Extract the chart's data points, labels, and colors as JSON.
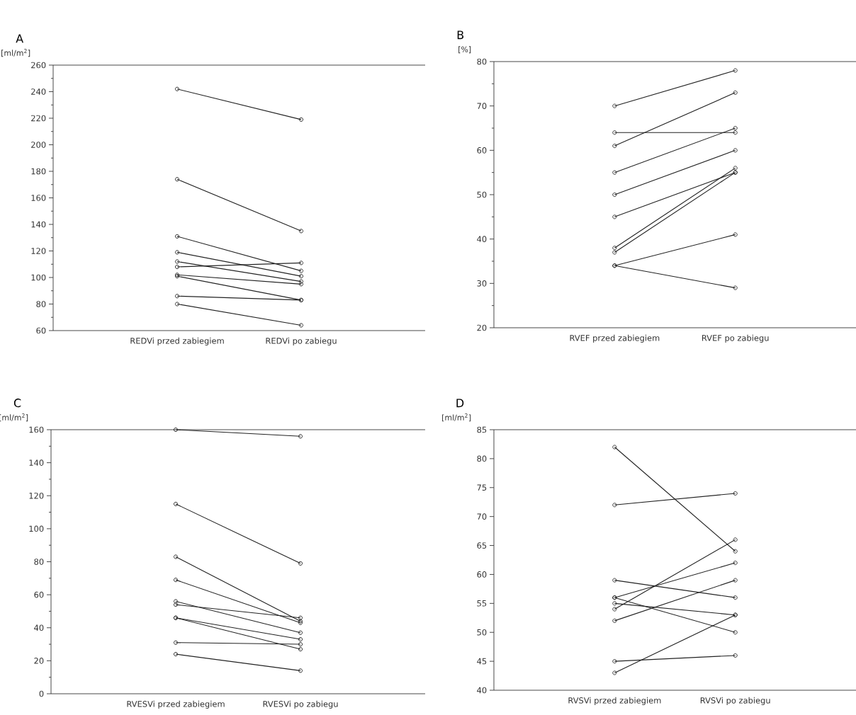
{
  "chart_data": [
    {
      "type": "line",
      "title": "A",
      "ylabel": "[ml/m$^{2}$]",
      "categories": [
        "REDVi przed zabiegiem",
        "REDVi po zabiegu"
      ],
      "marker": "circle",
      "line_style": "solid",
      "ylim": [
        60,
        260
      ],
      "yticks": [
        60,
        {
          "value": 70,
          "label": null
        },
        80,
        {
          "value": 90,
          "label": null
        },
        100,
        {
          "value": 110,
          "label": null
        },
        120,
        {
          "value": 130,
          "label": null
        },
        140,
        {
          "value": 150,
          "label": null
        },
        160,
        {
          "value": 170,
          "label": null
        },
        180,
        {
          "value": 190,
          "label": null
        },
        200,
        {
          "value": 210,
          "label": null
        },
        220,
        {
          "value": 230,
          "label": null
        },
        240,
        {
          "value": 250,
          "label": null
        },
        260
      ],
      "series": [
        {
          "color": "#222222",
          "values": [
            242,
            219
          ]
        },
        {
          "color": "#222222",
          "values": [
            174,
            135
          ]
        },
        {
          "color": "#222222",
          "values": [
            131,
            105
          ]
        },
        {
          "color": "#222222",
          "values": [
            119,
            101
          ]
        },
        {
          "color": "#222222",
          "values": [
            112,
            97
          ]
        },
        {
          "color": "#222222",
          "values": [
            108,
            111
          ]
        },
        {
          "color": "#222222",
          "values": [
            102,
            95
          ]
        },
        {
          "color": "#222222",
          "values": [
            101,
            83
          ]
        },
        {
          "color": "#222222",
          "values": [
            86,
            83
          ]
        },
        {
          "color": "#222222",
          "values": [
            80,
            64
          ]
        }
      ]
    },
    {
      "type": "line",
      "title": "B",
      "ylabel": "[%]",
      "categories": [
        "RVEF przed zabiegiem",
        "RVEF po zabiegu"
      ],
      "marker": "circle",
      "line_style": "solid",
      "ylim": [
        20,
        80
      ],
      "yticks": [
        20,
        {
          "value": 25,
          "label": null
        },
        30,
        {
          "value": 35,
          "label": null
        },
        40,
        {
          "value": 45,
          "label": null
        },
        50,
        {
          "value": 55,
          "label": null
        },
        60,
        {
          "value": 65,
          "label": null
        },
        70,
        {
          "value": 75,
          "label": null
        },
        80
      ],
      "series": [
        {
          "color": "#222222",
          "values": [
            70,
            78
          ]
        },
        {
          "color": "#222222",
          "values": [
            61,
            73
          ]
        },
        {
          "color": "#222222",
          "values": [
            64,
            64
          ]
        },
        {
          "color": "#222222",
          "values": [
            55,
            65
          ]
        },
        {
          "color": "#222222",
          "values": [
            50,
            60
          ]
        },
        {
          "color": "#222222",
          "values": [
            45,
            55
          ]
        },
        {
          "color": "#222222",
          "values": [
            38,
            56
          ]
        },
        {
          "color": "#222222",
          "values": [
            37,
            55
          ]
        },
        {
          "color": "#222222",
          "values": [
            34,
            41
          ]
        },
        {
          "color": "#222222",
          "values": [
            34,
            29
          ]
        }
      ]
    },
    {
      "type": "line",
      "title": "C",
      "ylabel": "[ml/m$^{2}$]",
      "categories": [
        "RVESVi przed zabiegiem",
        "RVESVi po zabiegu"
      ],
      "marker": "circle",
      "line_style": "solid",
      "ylim": [
        0,
        160
      ],
      "yticks": [
        0,
        {
          "value": 10,
          "label": null
        },
        20,
        {
          "value": 30,
          "label": null
        },
        40,
        {
          "value": 50,
          "label": null
        },
        60,
        {
          "value": 70,
          "label": null
        },
        80,
        {
          "value": 90,
          "label": null
        },
        100,
        {
          "value": 110,
          "label": null
        },
        120,
        {
          "value": 130,
          "label": null
        },
        140,
        {
          "value": 150,
          "label": null
        },
        160
      ],
      "series": [
        {
          "color": "#222222",
          "values": [
            160,
            156
          ]
        },
        {
          "color": "#222222",
          "values": [
            115,
            79
          ]
        },
        {
          "color": "#222222",
          "values": [
            83,
            44
          ]
        },
        {
          "color": "#222222",
          "values": [
            69,
            43
          ]
        },
        {
          "color": "#222222",
          "values": [
            56,
            37
          ]
        },
        {
          "color": "#222222",
          "values": [
            54,
            46
          ]
        },
        {
          "color": "#222222",
          "values": [
            46,
            33
          ]
        },
        {
          "color": "#222222",
          "values": [
            46,
            27
          ]
        },
        {
          "color": "#222222",
          "values": [
            31,
            30
          ]
        },
        {
          "color": "#222222",
          "values": [
            24,
            14
          ]
        }
      ]
    },
    {
      "type": "line",
      "title": "D",
      "ylabel": "[ml/m$^{2}$]",
      "categories": [
        "RVSVi przed zabiegiem",
        "RVSVi po zabiegu"
      ],
      "marker": "circle",
      "line_style": "solid",
      "ylim": [
        40,
        85
      ],
      "yticks": [
        40,
        45,
        50,
        55,
        60,
        65,
        70,
        75,
        80,
        85
      ],
      "series": [
        {
          "color": "#222222",
          "values": [
            82,
            64
          ]
        },
        {
          "color": "#222222",
          "values": [
            72,
            74
          ]
        },
        {
          "color": "#222222",
          "values": [
            59,
            56
          ]
        },
        {
          "color": "#222222",
          "values": [
            56,
            62
          ]
        },
        {
          "color": "#222222",
          "values": [
            56,
            50
          ]
        },
        {
          "color": "#222222",
          "values": [
            55,
            53
          ]
        },
        {
          "color": "#222222",
          "values": [
            54,
            66
          ]
        },
        {
          "color": "#222222",
          "values": [
            52,
            59
          ]
        },
        {
          "color": "#222222",
          "values": [
            45,
            46
          ]
        },
        {
          "color": "#222222",
          "values": [
            43,
            53
          ]
        }
      ]
    }
  ]
}
